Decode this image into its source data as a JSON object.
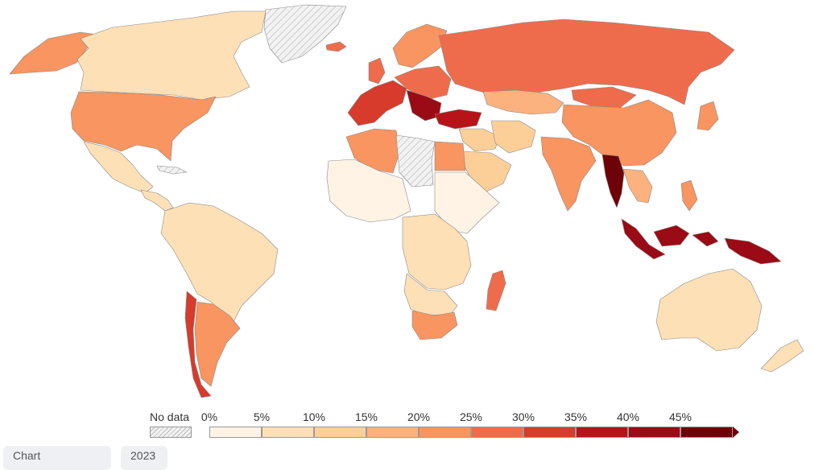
{
  "colors": {
    "no_data_fill": "#eeeeee",
    "no_data_hatch": "#bbbbbb",
    "bins": [
      "#fff3e6",
      "#fde0b6",
      "#fccf99",
      "#fbb27e",
      "#f89560",
      "#ee6c4c",
      "#d63b2c",
      "#b71419",
      "#9a0b15",
      "#6e0209"
    ]
  },
  "legend": {
    "no_data_label": "No data",
    "tick_labels": [
      "0%",
      "5%",
      "10%",
      "15%",
      "20%",
      "25%",
      "30%",
      "35%",
      "40%",
      "45%"
    ]
  },
  "bottom_bar": {
    "left_control": "Chart",
    "year": "2023"
  },
  "regions": {
    "north_america_canada": 1,
    "alaska": 4,
    "usa": 4,
    "mexico": 1,
    "central_america": 1,
    "greenland": -1,
    "cuba": -1,
    "south_america_main": 1,
    "argentina": 4,
    "chile": 6,
    "west_africa": 0,
    "sahara": -1,
    "east_africa": 0,
    "central_africa": 1,
    "southern_africa": 1,
    "south_africa": 4,
    "madagascar": 5,
    "algeria": 4,
    "egypt": 4,
    "libya": -1,
    "western_europe": 6,
    "eastern_europe": 5,
    "balkans": 8,
    "scandinavia": 4,
    "uk": 5,
    "russia": 5,
    "kazakhstan": 3,
    "middle_east": 2,
    "arabia": 2,
    "turkey": 7,
    "iran": 2,
    "india": 4,
    "china": 4,
    "mongolia": 5,
    "myanmar": 9,
    "thailand_region": 3,
    "indonesia": 8,
    "papua": 8,
    "philippines": 4,
    "japan": 4,
    "australia": 1,
    "new_zealand": 1,
    "iceland": 5
  }
}
